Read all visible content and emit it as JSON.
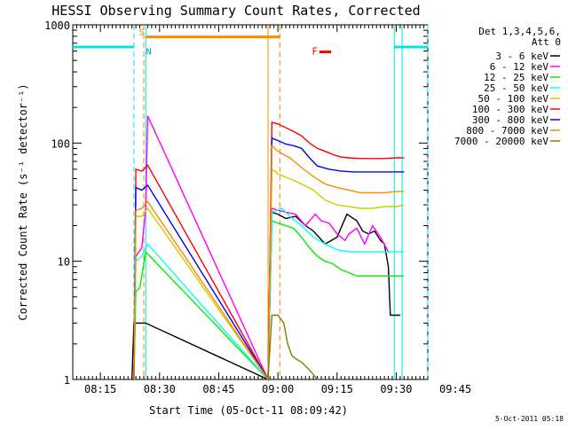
{
  "chart_data": {
    "type": "line",
    "title": "HESSI Observing Summary Count Rates, Corrected",
    "xlabel": "Start Time (05-Oct-11 08:09:42)",
    "ylabel": "Corrected Count Rate (s⁻¹ detector⁻¹)",
    "yscale": "log",
    "ylim": [
      1,
      1000
    ],
    "xlim_minutes": [
      8.0,
      98.0
    ],
    "x_ticks": [
      {
        "label": "08:15",
        "minute": 15
      },
      {
        "label": "08:30",
        "minute": 30
      },
      {
        "label": "08:45",
        "minute": 45
      },
      {
        "label": "09:00",
        "minute": 60
      },
      {
        "label": "09:15",
        "minute": 75
      },
      {
        "label": "09:30",
        "minute": 90
      },
      {
        "label": "09:45",
        "minute": 105
      }
    ],
    "y_ticks": [
      {
        "label": "1",
        "value": 1
      },
      {
        "label": "10",
        "value": 10
      },
      {
        "label": "100",
        "value": 100
      },
      {
        "label": "1000",
        "value": 1000
      }
    ],
    "legend_title_lines": [
      "Det 1,3,4,5,6,",
      "Att 0"
    ],
    "legend_placement": "right",
    "series": [
      {
        "name": "3 - 6 keV",
        "color": "#000000",
        "x": [
          23.0,
          23.5,
          24.5,
          25.5,
          26.5,
          57.5,
          58.5,
          60.0,
          62.0,
          64.5,
          67.0,
          69.0,
          72.0,
          75.0,
          77.5,
          80.0,
          81.5,
          83.0,
          84.5,
          86.0,
          87.0,
          88.0,
          88.5,
          89.5,
          91.0
        ],
        "y": [
          1,
          3,
          3,
          3,
          3,
          1,
          26,
          25,
          23,
          24,
          20,
          18,
          14,
          16,
          25,
          22,
          18,
          17,
          18,
          15,
          14,
          9,
          3.5,
          3.5,
          3.5
        ]
      },
      {
        "name": "6 - 12 keV",
        "color": "#ff00ff",
        "x": [
          23.5,
          24.0,
          25.5,
          26.5,
          27.0,
          57.5,
          58.5,
          60.0,
          62.0,
          64.5,
          67.0,
          69.5,
          71.0,
          73.0,
          75.0,
          77.0,
          78.0,
          80.0,
          82.0,
          84.0,
          86.0,
          88.0
        ],
        "y": [
          1,
          11,
          13,
          28,
          170,
          1,
          28,
          27,
          26,
          25,
          20,
          25,
          22,
          21,
          17,
          15,
          17,
          19,
          14,
          20,
          16,
          12
        ]
      },
      {
        "name": "12 - 25 keV",
        "color": "#00ee00",
        "x": [
          23.5,
          24.0,
          25.0,
          26.5,
          57.5,
          58.5,
          60.0,
          62.0,
          64.0,
          66.0,
          68.0,
          70.0,
          72.0,
          74.0,
          76.0,
          78.0,
          80.0,
          82.0,
          84.0,
          86.0,
          88.0,
          90.0,
          92.0
        ],
        "y": [
          1,
          5.5,
          6,
          12,
          1,
          22,
          21,
          20,
          19,
          16,
          13,
          11,
          10,
          9.5,
          8.5,
          8,
          7.5,
          7.5,
          7.5,
          7.5,
          7.5,
          7.5,
          7.5
        ]
      },
      {
        "name": "25 - 50 keV",
        "color": "#00ffff",
        "x": [
          23.5,
          24.0,
          25.5,
          27.0,
          57.5,
          58.5,
          61.0,
          63.0,
          66.0,
          69.0,
          72.0,
          75.0,
          78.0,
          81.0,
          84.0,
          87.0,
          90.0,
          92.0
        ],
        "y": [
          1,
          10,
          11,
          14,
          1,
          26,
          28,
          24,
          20,
          16,
          14,
          12.5,
          12,
          12,
          12,
          12,
          12,
          12
        ]
      },
      {
        "name": "50 - 100 keV",
        "color": "#cccc00",
        "x": [
          23.5,
          24.0,
          25.5,
          27.0,
          57.5,
          58.5,
          60.0,
          63.0,
          66.0,
          69.0,
          72.0,
          75.0,
          78.0,
          81.0,
          84.0,
          87.0,
          90.0,
          92.0
        ],
        "y": [
          1,
          24,
          24,
          28,
          1,
          60,
          55,
          50,
          45,
          40,
          33,
          30,
          29,
          28,
          28,
          29,
          29,
          30
        ]
      },
      {
        "name": "100 - 300 keV",
        "color": "#ff0000",
        "x": [
          23.5,
          24.0,
          25.5,
          27.0,
          57.5,
          58.5,
          60.0,
          62.0,
          64.0,
          66.0,
          68.0,
          70.0,
          72.0,
          74.0,
          76.0,
          78.0,
          81.0,
          84.0,
          87.0,
          90.0,
          92.0
        ],
        "y": [
          1,
          60,
          58,
          65,
          1,
          150,
          145,
          135,
          125,
          115,
          100,
          90,
          85,
          80,
          76,
          75,
          74,
          74,
          74,
          75,
          75
        ]
      },
      {
        "name": "300 - 800 keV",
        "color": "#0000ff",
        "x": [
          23.5,
          24.0,
          25.5,
          27.0,
          57.5,
          58.5,
          60.0,
          62.0,
          64.0,
          66.0,
          68.0,
          70.0,
          73.0,
          76.0,
          79.0,
          82.0,
          85.0,
          88.0,
          90.0,
          92.0
        ],
        "y": [
          1,
          42,
          40,
          44,
          1,
          110,
          105,
          98,
          95,
          90,
          75,
          64,
          60,
          58,
          57,
          57,
          57,
          57,
          57,
          57
        ]
      },
      {
        "name": "800 - 7000 keV",
        "color": "#ff8800",
        "x": [
          23.5,
          24.0,
          25.5,
          27.0,
          57.5,
          58.5,
          60.0,
          63.0,
          66.0,
          69.0,
          72.0,
          75.0,
          78.0,
          81.0,
          84.0,
          87.0,
          90.0,
          92.0
        ],
        "y": [
          1,
          27,
          28,
          32,
          1,
          95,
          85,
          75,
          62,
          52,
          45,
          42,
          40,
          38,
          38,
          38,
          39,
          39
        ]
      },
      {
        "name": "7000 - 20000 keV",
        "color": "#808000",
        "x": [
          57.5,
          58.5,
          60.0,
          61.5,
          62.5,
          63.5,
          64.5,
          66.0,
          67.0,
          68.0,
          69.0,
          70.0
        ],
        "y": [
          1,
          3.5,
          3.5,
          3,
          2,
          1.6,
          1.5,
          1.4,
          1.3,
          1.2,
          1.1,
          1
        ]
      }
    ],
    "annotations": {
      "saa_label": "S",
      "night_label": "N",
      "flare_label": "F",
      "attenuator_level": 650,
      "dashed_vlines_minutes": [
        23.5,
        26.0,
        60.5,
        102.5
      ],
      "solid_vlines_minutes": [
        26.5,
        57.5,
        89.5,
        91.5
      ],
      "orange_bar_minutes": [
        26.5,
        60.5
      ],
      "cyan_bar_segments_minutes": [
        [
          8.0,
          23.5
        ],
        [
          89.5,
          98.0
        ]
      ],
      "flare_bar_minutes": [
        70.5,
        73.5
      ]
    }
  },
  "footer": {
    "timestamp": "5-Oct-2011 05:18"
  }
}
